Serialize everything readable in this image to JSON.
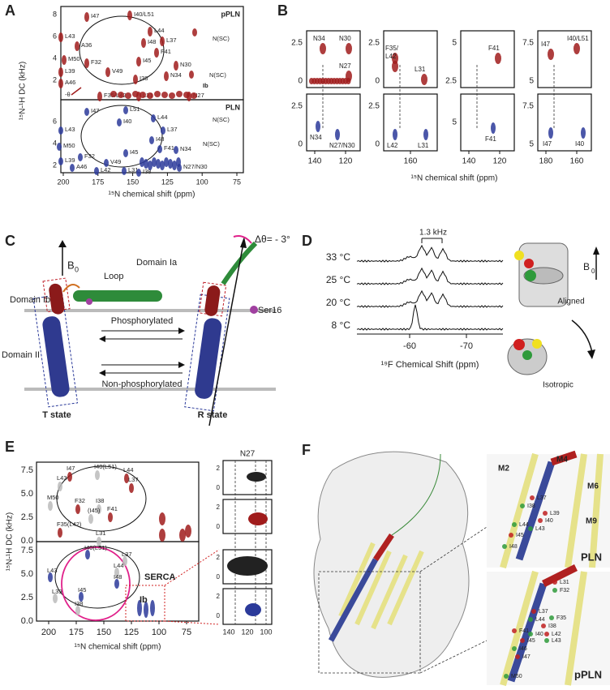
{
  "panel_A": {
    "letter": "A",
    "top_label": "pPLN",
    "bottom_label": "PLN",
    "y_axis_label": "¹⁵N-¹H DC (kHz)",
    "x_axis_label": "¹⁵N chemical shift (ppm)",
    "x_ticks": [
      200,
      175,
      150,
      125,
      100,
      75
    ],
    "top_y_ticks": [
      8,
      6,
      4,
      2
    ],
    "bottom_y_ticks": [
      6,
      4,
      2
    ],
    "top_peaks": [
      "I47",
      "I40/L51",
      "L43",
      "A36",
      "L44",
      "L37",
      "M50",
      "F41",
      "I48",
      "F32",
      "V49",
      "I45",
      "N30",
      "L39",
      "I38",
      "N34",
      "A46",
      "F35/L42",
      "L31",
      "N27",
      "Ib",
      "-θ",
      "N(SC)",
      "N(SC)"
    ],
    "bottom_peaks": [
      "I47",
      "L51",
      "I40",
      "L44",
      "L37",
      "L43",
      "I48",
      "F41",
      "N34",
      "M50",
      "I45",
      "F32",
      "L39",
      "V49",
      "A46",
      "L42",
      "L31",
      "I38",
      "N27/N30",
      "N(SC)",
      "N(SC)"
    ]
  },
  "panel_B": {
    "letter": "B",
    "x_axis_label": "¹⁵N chemical shift (ppm)",
    "columns": [
      {
        "x_ticks": [
          140,
          120
        ],
        "top_y_ticks": [
          2.5,
          0
        ],
        "bottom_y_ticks": [
          2.5,
          0
        ],
        "top_peaks": [
          "N34",
          "N30",
          "N27"
        ],
        "bottom_peaks": [
          "N34",
          "N27/N30"
        ]
      },
      {
        "x_ticks": [
          160
        ],
        "top_y_ticks": [
          2.5,
          0
        ],
        "bottom_y_ticks": [
          2.5,
          0
        ],
        "top_peaks": [
          "F35/",
          "L42",
          "L31"
        ],
        "bottom_peaks": [
          "L42",
          "L31"
        ]
      },
      {
        "x_ticks": [
          140,
          120
        ],
        "top_y_ticks": [
          5,
          2.5
        ],
        "bottom_y_ticks": [
          5
        ],
        "top_peaks": [
          "F41"
        ],
        "bottom_peaks": [
          "F41"
        ]
      },
      {
        "x_ticks": [
          180,
          160
        ],
        "top_y_ticks": [
          7.5,
          5
        ],
        "bottom_y_ticks": [
          7.5,
          5
        ],
        "top_peaks": [
          "I47",
          "I40/L51"
        ],
        "bottom_peaks": [
          "I47",
          "I40"
        ]
      }
    ]
  },
  "panel_C": {
    "letter": "C",
    "b0": "B",
    "b0_sub": "0",
    "loop": "Loop",
    "domain_ia": "Domain Ia",
    "domain_ib": "Domain Ib",
    "domain_ii": "Domain II",
    "ser16": "Ser16",
    "phosphorylated": "Phosphorylated",
    "non_phosphorylated": "Non-phosphorylated",
    "t_state": "T state",
    "r_state": "R state",
    "delta_theta": "Δθ= - 3°"
  },
  "panel_D": {
    "letter": "D",
    "temperatures": [
      "33 °C",
      "25 °C",
      "20 °C",
      "8 °C"
    ],
    "splitting": "1.3 kHz",
    "x_ticks": [
      -60,
      -70
    ],
    "x_axis_label": "¹⁹F Chemical Shift (ppm)",
    "aligned": "Aligned",
    "isotropic": "Isotropic",
    "b0": "B",
    "b0_sub": "0"
  },
  "panel_E": {
    "letter": "E",
    "y_axis_label": "¹⁵N-¹H DC (kHz)",
    "x_axis_label": "¹⁵N chemical shift (ppm)",
    "x_ticks": [
      200,
      175,
      150,
      125,
      100,
      75
    ],
    "y_ticks": [
      "7.5",
      "5.0",
      "2.5",
      "0.0"
    ],
    "top_peaks": [
      "I47",
      "I40(L51)",
      "L44",
      "L43",
      "L37",
      "M50",
      "F32",
      "I38",
      "F41",
      "(I45)",
      "F35(L42)",
      "L31"
    ],
    "bottom_peaks": [
      "I40(L51)",
      "L37",
      "L43",
      "L44",
      "I48",
      "L39",
      "I45",
      "I38"
    ],
    "serca": "SERCA",
    "ib": "Ib",
    "inset_title": "N27",
    "inset_y_ticks": [
      2,
      0
    ],
    "inset_x_ticks": [
      140,
      120,
      100
    ]
  },
  "panel_F": {
    "letter": "F",
    "helices": [
      "M2",
      "M4",
      "M6",
      "M9"
    ],
    "top_label": "PLN",
    "bottom_label": "pPLN",
    "top_residues": [
      "L37",
      "I38",
      "L39",
      "L44",
      "I40",
      "L43",
      "I45",
      "I48"
    ],
    "bottom_residues": [
      "L31",
      "F32",
      "L37",
      "F35",
      "I38",
      "L44",
      "F41",
      "I40",
      "L42",
      "L43",
      "I45",
      "I46",
      "I47",
      "M50"
    ]
  }
}
